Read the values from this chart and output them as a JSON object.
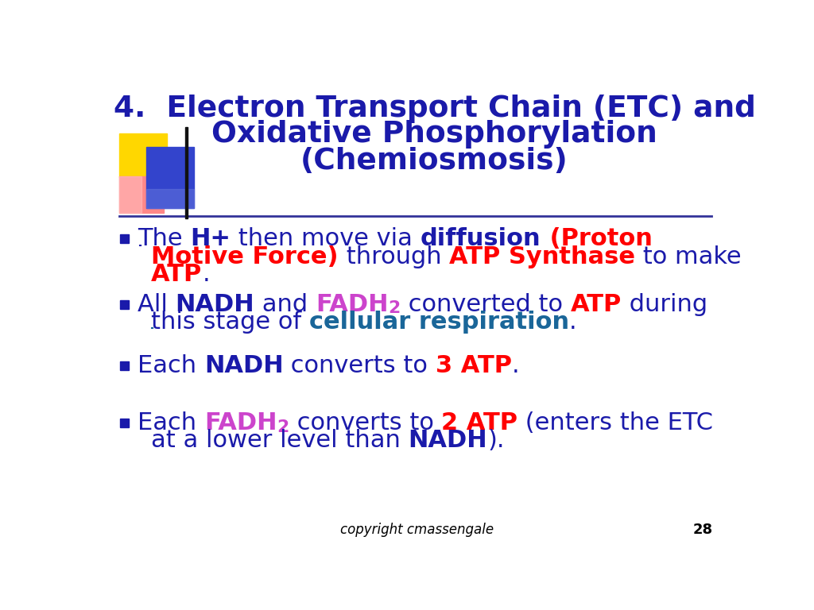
{
  "bg_color": "#ffffff",
  "title_line1": "4.  Electron Transport Chain (ETC) and",
  "title_line2": "Oxidative Phosphorylation",
  "title_line3": "(Chemiosmosis)",
  "dark_blue": "#1a1aaa",
  "red": "#ff0000",
  "purple": "#cc44cc",
  "teal": "#1a6699",
  "footer_text": "copyright cmassengale",
  "page_number": "28",
  "title_fontsize": 27,
  "body_fontsize": 22
}
